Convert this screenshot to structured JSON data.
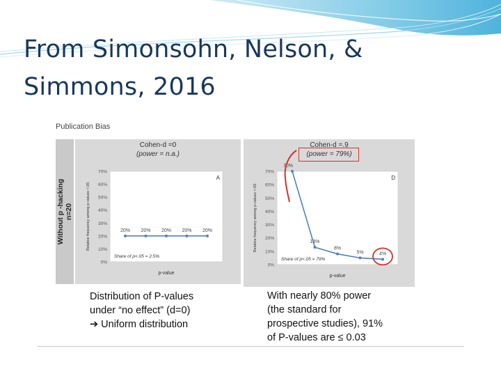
{
  "slide": {
    "title": "From Simonsohn, Nelson, & Simmons, 2016"
  },
  "figure": {
    "heading": "Publication Bias",
    "row_label_line1": "Without  p -hacking",
    "row_label_line2": "n=20",
    "caption_left": [
      "Distribution of P-values",
      "under “no effect” (d=0)",
      "➔ Uniform distribution"
    ],
    "caption_right": [
      "With nearly 80% power",
      "(the standard for",
      "prospective studies), 91%",
      "of P-values are ≤ 0.03"
    ]
  },
  "colors": {
    "title": "#17375e",
    "line": "#4f81bd",
    "highlight": "#d2312b"
  },
  "chart_data": [
    {
      "type": "line",
      "panel_title": "Cohen-d =0",
      "panel_subtitle": "(power = n.a.)",
      "panel_letter": "A",
      "ylabel": "Relative frequency among p-values <.05",
      "xlabel": "p-value",
      "annotation": "Share of p<.05 = 2.5%",
      "ylim": [
        0,
        70
      ],
      "yticks": [
        "0%",
        "10%",
        "20%",
        "30%",
        "40%",
        "50%",
        "60%",
        "70%"
      ],
      "values": [
        20,
        20,
        20,
        20,
        20
      ],
      "data_labels": [
        "20%",
        "20%",
        "20%",
        "20%",
        "20%"
      ]
    },
    {
      "type": "line",
      "panel_title": "Cohen-d =.9",
      "panel_subtitle": "(power = 79%)",
      "panel_letter": "D",
      "ylabel": "Relative frequency among p-values <.05",
      "xlabel": "p-value",
      "annotation": "Share of p<.05 = 79%",
      "ylim": [
        0,
        70
      ],
      "yticks": [
        "0%",
        "10%",
        "20%",
        "30%",
        "40%",
        "50%",
        "60%",
        "70%"
      ],
      "values": [
        70,
        13,
        8,
        5,
        4
      ],
      "data_labels": [
        "70%",
        "13%",
        "8%",
        "5%",
        "4%"
      ]
    }
  ]
}
